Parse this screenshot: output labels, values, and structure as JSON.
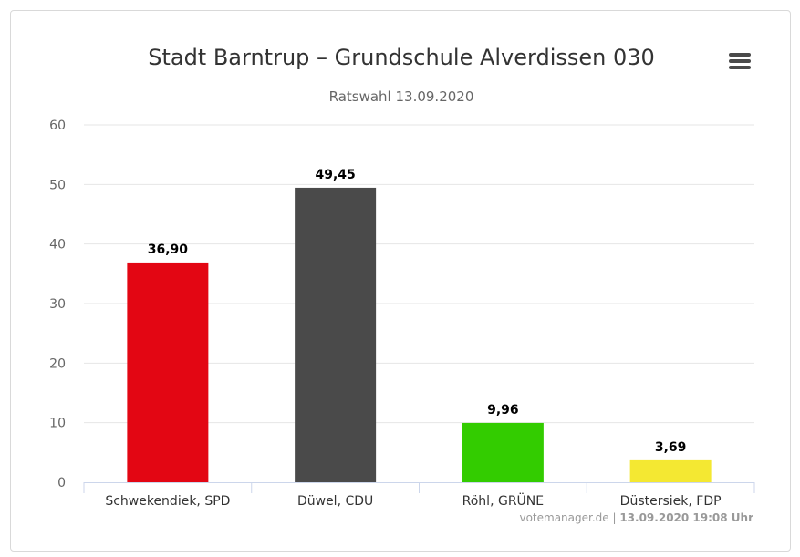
{
  "chart_data": {
    "type": "bar",
    "title": "Stadt Barntrup – Grundschule Alverdissen 030",
    "subtitle": "Ratswahl 13.09.2020",
    "categories": [
      "Schwekendiek, SPD",
      "Düwel, CDU",
      "Röhl, GRÜNE",
      "Düstersiek, FDP"
    ],
    "values": [
      36.9,
      49.45,
      9.96,
      3.69
    ],
    "data_labels": [
      "36,90",
      "49,45",
      "9,96",
      "3,69"
    ],
    "colors": [
      "#e30613",
      "#4a4a4a",
      "#33cc00",
      "#f4e832"
    ],
    "ylim": [
      0,
      60
    ],
    "yticks": [
      0,
      10,
      20,
      30,
      40,
      50,
      60
    ],
    "grid": true,
    "legend": "none"
  },
  "credits": {
    "source": "votemanager.de",
    "separator": " | ",
    "timestamp": "13.09.2020 19:08 Uhr"
  },
  "menu": {
    "icon": "hamburger-menu-icon"
  }
}
